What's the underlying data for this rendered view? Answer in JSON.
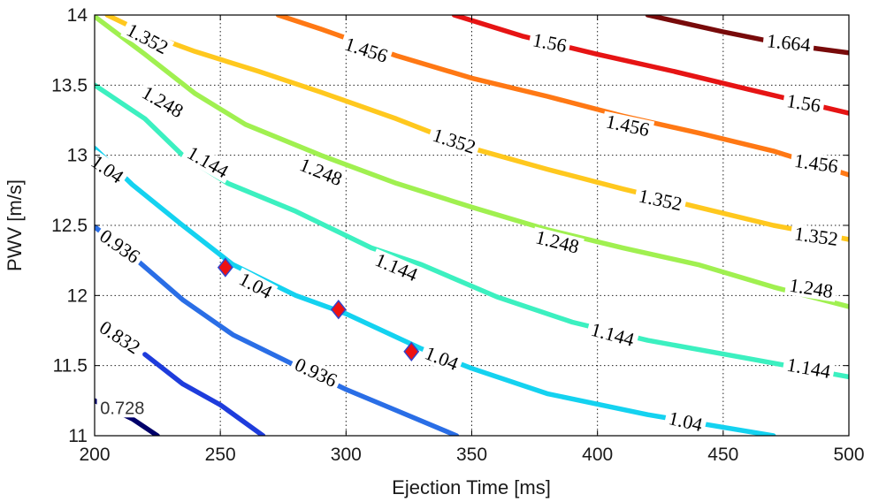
{
  "chart_data": {
    "type": "contour",
    "title": "",
    "xlabel": "Ejection Time [ms]",
    "ylabel": "PWV [m/s]",
    "xlim": [
      200,
      500
    ],
    "ylim": [
      11,
      14
    ],
    "grid": true,
    "x_ticks": [
      "200",
      "250",
      "300",
      "350",
      "400",
      "450",
      "500"
    ],
    "y_ticks": [
      "11",
      "11.5",
      "12",
      "12.5",
      "13",
      "13.5",
      "14"
    ],
    "contours": [
      {
        "level": 0.728,
        "label": "0.728",
        "color": "#00006a",
        "points": [
          [
            200,
            11.25
          ],
          [
            215,
            11.12
          ],
          [
            225,
            11.0
          ]
        ]
      },
      {
        "level": 0.832,
        "label": "0.832",
        "color": "#1e3cdc",
        "points": [
          [
            220,
            11.58
          ],
          [
            235,
            11.37
          ],
          [
            250,
            11.22
          ],
          [
            267,
            11.0
          ]
        ]
      },
      {
        "level": 0.936,
        "label": "0.936",
        "color": "#2a6ee6",
        "points": [
          [
            200,
            12.49
          ],
          [
            215,
            12.28
          ],
          [
            235,
            11.97
          ],
          [
            255,
            11.72
          ],
          [
            280,
            11.5
          ],
          [
            300,
            11.33
          ],
          [
            320,
            11.18
          ],
          [
            344,
            11.0
          ]
        ]
      },
      {
        "level": 1.04,
        "label": "1.04",
        "color": "#14d2f0",
        "points": [
          [
            200,
            13.05
          ],
          [
            215,
            12.79
          ],
          [
            235,
            12.5
          ],
          [
            255,
            12.22
          ],
          [
            280,
            12.0
          ],
          [
            300,
            11.87
          ],
          [
            330,
            11.62
          ],
          [
            350,
            11.48
          ],
          [
            380,
            11.3
          ],
          [
            420,
            11.15
          ],
          [
            470,
            11.0
          ]
        ]
      },
      {
        "level": 1.144,
        "label": "1.144",
        "color": "#3cf0c0",
        "points": [
          [
            200,
            13.5
          ],
          [
            220,
            13.26
          ],
          [
            235,
            13.0
          ],
          [
            253,
            12.8
          ],
          [
            280,
            12.6
          ],
          [
            310,
            12.34
          ],
          [
            330,
            12.22
          ],
          [
            360,
            11.99
          ],
          [
            390,
            11.81
          ],
          [
            420,
            11.68
          ],
          [
            460,
            11.55
          ],
          [
            500,
            11.42
          ]
        ]
      },
      {
        "level": 1.248,
        "label": "1.248",
        "color": "#a0f050",
        "points": [
          [
            200,
            13.99
          ],
          [
            220,
            13.72
          ],
          [
            240,
            13.44
          ],
          [
            260,
            13.22
          ],
          [
            290,
            13.0
          ],
          [
            320,
            12.8
          ],
          [
            350,
            12.63
          ],
          [
            380,
            12.47
          ],
          [
            410,
            12.34
          ],
          [
            440,
            12.22
          ],
          [
            470,
            12.06
          ],
          [
            500,
            11.92
          ]
        ]
      },
      {
        "level": 1.352,
        "label": "1.352",
        "color": "#ffc81e",
        "points": [
          [
            205,
            14.0
          ],
          [
            220,
            13.87
          ],
          [
            240,
            13.74
          ],
          [
            265,
            13.6
          ],
          [
            290,
            13.45
          ],
          [
            320,
            13.26
          ],
          [
            350,
            13.05
          ],
          [
            380,
            12.9
          ],
          [
            410,
            12.76
          ],
          [
            440,
            12.63
          ],
          [
            470,
            12.5
          ],
          [
            500,
            12.4
          ]
        ]
      },
      {
        "level": 1.456,
        "label": "1.456",
        "color": "#ff7814",
        "points": [
          [
            273,
            14.0
          ],
          [
            290,
            13.9
          ],
          [
            320,
            13.71
          ],
          [
            350,
            13.55
          ],
          [
            380,
            13.42
          ],
          [
            410,
            13.28
          ],
          [
            440,
            13.16
          ],
          [
            470,
            13.03
          ],
          [
            500,
            12.86
          ]
        ]
      },
      {
        "level": 1.56,
        "label": "1.56",
        "color": "#e61414",
        "points": [
          [
            343,
            14.0
          ],
          [
            370,
            13.85
          ],
          [
            400,
            13.72
          ],
          [
            430,
            13.6
          ],
          [
            460,
            13.47
          ],
          [
            500,
            13.3
          ]
        ]
      },
      {
        "level": 1.664,
        "label": "1.664",
        "color": "#780a0a",
        "points": [
          [
            420,
            14.0
          ],
          [
            450,
            13.88
          ],
          [
            475,
            13.79
          ],
          [
            500,
            13.73
          ]
        ]
      }
    ],
    "contour_labels": [
      {
        "text": "0.728",
        "x": 211,
        "y": 11.2,
        "angle": 0,
        "style": "plain"
      },
      {
        "text": "0.832",
        "x": 210,
        "y": 11.7,
        "angle": 33
      },
      {
        "text": "0.936",
        "x": 210,
        "y": 12.35,
        "angle": 35
      },
      {
        "text": "0.936",
        "x": 288,
        "y": 11.45,
        "angle": 25
      },
      {
        "text": "1.04",
        "x": 205,
        "y": 12.9,
        "angle": 35
      },
      {
        "text": "1.04",
        "x": 264,
        "y": 12.07,
        "angle": 28
      },
      {
        "text": "1.04",
        "x": 338,
        "y": 11.55,
        "angle": 22
      },
      {
        "text": "1.04",
        "x": 435,
        "y": 11.1,
        "angle": 13
      },
      {
        "text": "1.144",
        "x": 245,
        "y": 12.95,
        "angle": 30
      },
      {
        "text": "1.144",
        "x": 320,
        "y": 12.2,
        "angle": 23
      },
      {
        "text": "1.144",
        "x": 406,
        "y": 11.72,
        "angle": 15
      },
      {
        "text": "1.144",
        "x": 484,
        "y": 11.48,
        "angle": 10
      },
      {
        "text": "1.248",
        "x": 227,
        "y": 13.38,
        "angle": 30
      },
      {
        "text": "1.248",
        "x": 290,
        "y": 12.88,
        "angle": 22
      },
      {
        "text": "1.248",
        "x": 384,
        "y": 12.38,
        "angle": 14
      },
      {
        "text": "1.248",
        "x": 485,
        "y": 12.05,
        "angle": 9
      },
      {
        "text": "1.352",
        "x": 221,
        "y": 13.83,
        "angle": 28
      },
      {
        "text": "1.352",
        "x": 343,
        "y": 13.1,
        "angle": 18
      },
      {
        "text": "1.352",
        "x": 425,
        "y": 12.68,
        "angle": 12
      },
      {
        "text": "1.352",
        "x": 487,
        "y": 12.42,
        "angle": 8
      },
      {
        "text": "1.456",
        "x": 308,
        "y": 13.75,
        "angle": 18
      },
      {
        "text": "1.456",
        "x": 412,
        "y": 13.21,
        "angle": 12
      },
      {
        "text": "1.456",
        "x": 487,
        "y": 12.94,
        "angle": 8
      },
      {
        "text": "1.56",
        "x": 381,
        "y": 13.8,
        "angle": 11
      },
      {
        "text": "1.56",
        "x": 482,
        "y": 13.37,
        "angle": 9
      },
      {
        "text": "1.664",
        "x": 476,
        "y": 13.8,
        "angle": 6
      }
    ],
    "markers": {
      "shape": "diamond",
      "fill": "#ee1111",
      "stroke": "#3344cc",
      "points": [
        [
          252,
          12.2
        ],
        [
          297,
          11.9
        ],
        [
          326,
          11.6
        ]
      ]
    }
  }
}
